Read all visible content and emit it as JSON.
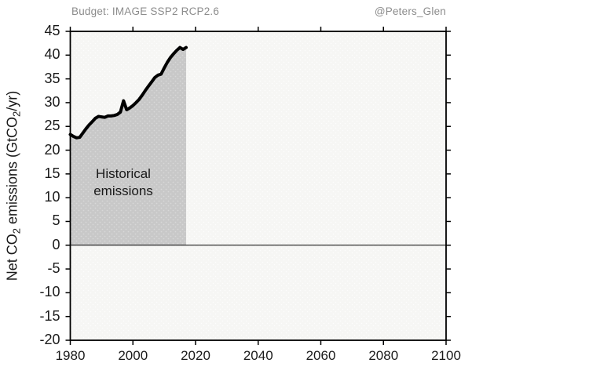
{
  "header": {
    "subtitle": "Budget: IMAGE SSP2 RCP2.6",
    "attribution": "@Peters_Glen"
  },
  "y_axis": {
    "title_parts": [
      "Net CO",
      "2",
      " emissions (GtCO",
      "2",
      "/yr)"
    ]
  },
  "annotation": {
    "line1": "Historical",
    "line2": "emissions"
  },
  "colors": {
    "plot_fill": "#f6f6f4",
    "plot_dot": "#fdfdfc",
    "historical_fill": "#c8c8c8",
    "historical_dot": "#d8d8d8",
    "line": "#000000",
    "axis": "#000000",
    "zero_line": "#000000",
    "muted_text": "#8c8c8c",
    "text": "#1a1a1a"
  },
  "chart_data": {
    "type": "line",
    "title": "Budget: IMAGE SSP2 RCP2.6",
    "xlabel": "",
    "ylabel": "Net CO2 emissions (GtCO2/yr)",
    "xlim": [
      1980,
      2100
    ],
    "ylim": [
      -20,
      45
    ],
    "xticks": [
      1980,
      2000,
      2020,
      2040,
      2060,
      2080,
      2100
    ],
    "yticks": [
      -20,
      -15,
      -10,
      -5,
      0,
      5,
      10,
      15,
      20,
      25,
      30,
      35,
      40,
      45
    ],
    "grid": false,
    "legend": "none",
    "annotation_label": "Historical emissions",
    "historical_area_end_year": 2017,
    "series": [
      {
        "name": "Historical emissions",
        "x": [
          1980,
          1981,
          1982,
          1983,
          1984,
          1985,
          1986,
          1987,
          1988,
          1989,
          1990,
          1991,
          1992,
          1993,
          1994,
          1995,
          1996,
          1997,
          1998,
          1999,
          2000,
          2001,
          2002,
          2003,
          2004,
          2005,
          2006,
          2007,
          2008,
          2009,
          2010,
          2011,
          2012,
          2013,
          2014,
          2015,
          2016,
          2017
        ],
        "y": [
          23.3,
          22.9,
          22.6,
          22.7,
          23.6,
          24.5,
          25.3,
          26.0,
          26.7,
          27.1,
          27.0,
          26.9,
          27.2,
          27.2,
          27.3,
          27.5,
          28.0,
          30.4,
          28.5,
          28.9,
          29.4,
          30.0,
          30.7,
          31.6,
          32.6,
          33.5,
          34.4,
          35.3,
          35.8,
          36.0,
          37.3,
          38.5,
          39.5,
          40.3,
          41.0,
          41.6,
          41.2,
          41.6
        ]
      }
    ]
  }
}
